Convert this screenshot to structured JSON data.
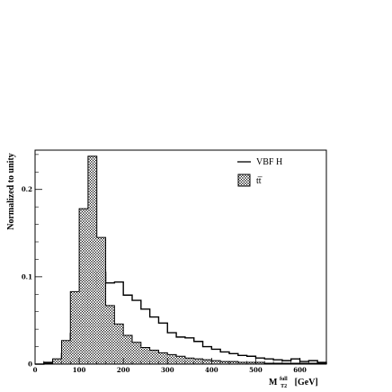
{
  "chart_data": {
    "type": "histogram",
    "ylabel": "Normalized to unity",
    "xlabel_main": "M",
    "xlabel_sup": "full",
    "xlabel_sub": "T2",
    "xlabel_unit": "[GeV]",
    "xlim": [
      0,
      660
    ],
    "ylim": [
      0,
      0.245
    ],
    "x_ticks": [
      0,
      100,
      200,
      300,
      400,
      500,
      600
    ],
    "y_ticks": [
      0,
      0.1,
      0.2
    ],
    "x_tick_labels": [
      "0",
      "100",
      "200",
      "300",
      "400",
      "500",
      "600"
    ],
    "y_tick_labels": [
      "0",
      "0.1",
      "0.2"
    ],
    "bin_edges": [
      0,
      20,
      40,
      60,
      80,
      100,
      120,
      140,
      160,
      180,
      200,
      220,
      240,
      260,
      280,
      300,
      320,
      340,
      360,
      380,
      400,
      420,
      440,
      460,
      480,
      500,
      520,
      540,
      560,
      580,
      600,
      620,
      640,
      660
    ],
    "series": [
      {
        "name": "VBF H",
        "style": "line",
        "values": [
          0,
          0.002,
          0.005,
          0.012,
          0.035,
          0.06,
          0.088,
          0.105,
          0.093,
          0.094,
          0.079,
          0.073,
          0.063,
          0.054,
          0.047,
          0.036,
          0.031,
          0.03,
          0.026,
          0.02,
          0.017,
          0.014,
          0.012,
          0.01,
          0.009,
          0.007,
          0.006,
          0.005,
          0.004,
          0.006,
          0.003,
          0.004,
          0.002
        ]
      },
      {
        "name": "t̅t",
        "style": "hatched",
        "values": [
          0,
          0.001,
          0.006,
          0.027,
          0.083,
          0.178,
          0.238,
          0.145,
          0.067,
          0.046,
          0.033,
          0.025,
          0.019,
          0.016,
          0.013,
          0.011,
          0.009,
          0.007,
          0.006,
          0.005,
          0.004,
          0.003,
          0.003,
          0.002,
          0.002,
          0.002,
          0.001,
          0.001,
          0.001,
          0.001,
          0.001,
          0.001,
          0.001
        ]
      }
    ],
    "legend": [
      {
        "label": "VBF H",
        "style": "line"
      },
      {
        "label": "tt̅",
        "style": "hatched"
      }
    ],
    "legend_position": "top-right",
    "grid": false,
    "colors": {
      "line": "#000000",
      "hatch": "#000000",
      "background": "#ffffff"
    }
  }
}
